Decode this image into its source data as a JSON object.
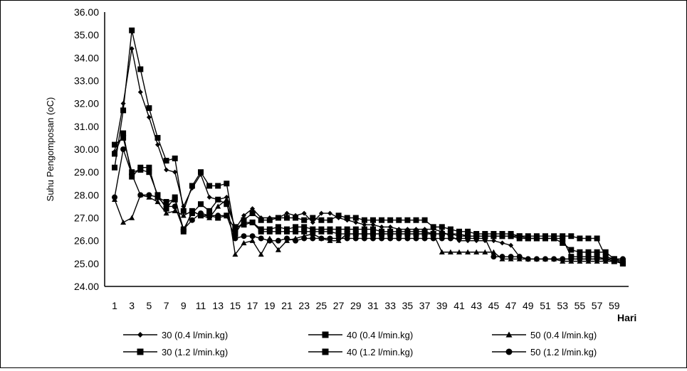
{
  "chart_data": {
    "type": "line",
    "title": "",
    "ylabel": "Suhu Pengomposan (oC)",
    "xlabel": "Hari",
    "ylim": [
      24,
      36
    ],
    "yticks": [
      "24.00",
      "25.00",
      "26.00",
      "27.00",
      "28.00",
      "29.00",
      "30.00",
      "31.00",
      "32.00",
      "33.00",
      "34.00",
      "35.00",
      "36.00"
    ],
    "xticks": [
      "1",
      "3",
      "5",
      "7",
      "9",
      "11",
      "13",
      "15",
      "17",
      "19",
      "21",
      "23",
      "25",
      "27",
      "29",
      "31",
      "33",
      "35",
      "37",
      "39",
      "41",
      "43",
      "45",
      "47",
      "49",
      "51",
      "53",
      "55",
      "57",
      "59"
    ],
    "grid": false,
    "legend_position": "bottom",
    "line_color": "#000000",
    "x": [
      1,
      2,
      3,
      4,
      5,
      6,
      7,
      8,
      9,
      10,
      11,
      12,
      13,
      14,
      15,
      16,
      17,
      18,
      19,
      20,
      21,
      22,
      23,
      24,
      25,
      26,
      27,
      28,
      29,
      30,
      31,
      32,
      33,
      34,
      35,
      36,
      37,
      38,
      39,
      40,
      41,
      42,
      43,
      44,
      45,
      46,
      47,
      48,
      49,
      50,
      51,
      52,
      53,
      54,
      55,
      56,
      57,
      58,
      59,
      60
    ],
    "series": [
      {
        "name": "30 (0.4 l/min.kg)",
        "marker": "diamond",
        "values": [
          29.9,
          32.0,
          34.4,
          32.5,
          31.4,
          30.2,
          29.1,
          29.0,
          27.5,
          28.3,
          28.9,
          27.9,
          27.8,
          27.9,
          26.5,
          27.1,
          27.4,
          27.0,
          27.0,
          27.0,
          27.2,
          27.1,
          27.2,
          26.8,
          27.2,
          27.2,
          27.0,
          26.9,
          26.8,
          26.7,
          26.7,
          26.6,
          26.6,
          26.5,
          26.5,
          26.5,
          26.5,
          26.5,
          26.4,
          26.2,
          26.0,
          26.0,
          26.0,
          26.0,
          26.0,
          25.9,
          25.8,
          25.3,
          25.2,
          25.2,
          25.2,
          25.2,
          25.2,
          25.2,
          25.2,
          25.2,
          25.2,
          25.2,
          25.2,
          25.2
        ]
      },
      {
        "name": "40 (0.4 l/min.kg)",
        "marker": "square",
        "values": [
          29.2,
          31.7,
          35.2,
          33.5,
          31.8,
          30.5,
          29.5,
          29.6,
          27.3,
          28.4,
          29.0,
          28.4,
          28.4,
          28.5,
          26.3,
          26.9,
          27.2,
          26.9,
          26.9,
          27.0,
          27.0,
          27.0,
          26.9,
          27.0,
          26.9,
          26.9,
          27.1,
          27.0,
          27.0,
          26.9,
          26.9,
          26.9,
          26.9,
          26.9,
          26.9,
          26.9,
          26.9,
          26.6,
          26.6,
          26.5,
          26.4,
          26.4,
          26.3,
          26.3,
          26.3,
          26.3,
          26.3,
          26.2,
          26.2,
          26.2,
          26.2,
          26.2,
          26.2,
          26.2,
          26.1,
          26.1,
          26.1,
          25.3,
          25.2,
          25.1
        ]
      },
      {
        "name": "50 (0.4 l/min.kg)",
        "marker": "triangle",
        "values": [
          27.8,
          26.8,
          27.0,
          28.0,
          27.9,
          27.7,
          27.2,
          27.3,
          27.1,
          27.3,
          27.1,
          27.0,
          27.5,
          27.8,
          25.4,
          25.9,
          26.0,
          25.4,
          26.1,
          25.6,
          26.0,
          26.1,
          26.2,
          26.3,
          26.1,
          26.0,
          26.0,
          26.3,
          26.3,
          26.3,
          26.3,
          26.3,
          26.3,
          26.3,
          26.3,
          26.3,
          26.3,
          26.3,
          25.5,
          25.5,
          25.5,
          25.5,
          25.5,
          25.5,
          25.5,
          25.2,
          25.2,
          25.2,
          25.2,
          25.2,
          25.2,
          25.2,
          25.1,
          25.1,
          25.1,
          25.1,
          25.1,
          25.1,
          25.1,
          25.0
        ]
      },
      {
        "name": "30 (1.2 l/min.kg)",
        "marker": "square",
        "values": [
          30.2,
          30.5,
          29.0,
          29.1,
          29.0,
          28.0,
          27.4,
          27.9,
          26.4,
          27.3,
          27.1,
          27.1,
          27.0,
          27.1,
          26.5,
          26.8,
          26.8,
          26.5,
          26.5,
          26.6,
          26.5,
          26.6,
          26.6,
          26.5,
          26.5,
          26.5,
          26.5,
          26.5,
          26.5,
          26.5,
          26.5,
          26.4,
          26.4,
          26.4,
          26.4,
          26.4,
          26.4,
          26.3,
          26.3,
          26.3,
          26.3,
          26.2,
          26.2,
          26.2,
          26.2,
          26.2,
          26.2,
          26.2,
          26.1,
          26.1,
          26.1,
          26.1,
          26.1,
          25.3,
          25.3,
          25.3,
          25.3,
          25.2,
          25.1,
          25.0
        ]
      },
      {
        "name": "40 (1.2 l/min.kg)",
        "marker": "square",
        "values": [
          29.8,
          30.7,
          28.8,
          29.2,
          29.2,
          27.9,
          27.7,
          27.8,
          26.5,
          27.2,
          27.6,
          27.3,
          27.8,
          27.6,
          26.6,
          26.7,
          26.8,
          26.4,
          26.4,
          26.4,
          26.4,
          26.4,
          26.4,
          26.4,
          26.4,
          26.4,
          26.3,
          26.3,
          26.3,
          26.3,
          26.3,
          26.3,
          26.3,
          26.3,
          26.3,
          26.3,
          26.3,
          26.3,
          26.3,
          26.3,
          26.2,
          26.2,
          26.2,
          26.2,
          26.2,
          26.2,
          26.2,
          26.1,
          26.1,
          26.1,
          26.1,
          26.1,
          25.9,
          25.6,
          25.5,
          25.5,
          25.5,
          25.5,
          25.2,
          25.0
        ]
      },
      {
        "name": "50 (1.2 l/min.kg)",
        "marker": "circle",
        "values": [
          27.9,
          30.0,
          28.9,
          28.0,
          28.0,
          27.9,
          27.5,
          27.5,
          26.5,
          26.9,
          27.2,
          27.1,
          27.1,
          27.1,
          26.1,
          26.2,
          26.2,
          26.1,
          26.0,
          26.0,
          26.1,
          26.0,
          26.1,
          26.1,
          26.1,
          26.1,
          26.1,
          26.1,
          26.1,
          26.1,
          26.1,
          26.1,
          26.1,
          26.1,
          26.1,
          26.1,
          26.1,
          26.1,
          26.1,
          26.1,
          26.1,
          26.1,
          26.1,
          26.1,
          25.3,
          25.3,
          25.3,
          25.3,
          25.2,
          25.2,
          25.2,
          25.2,
          25.2,
          25.2,
          25.2,
          25.2,
          25.2,
          25.2,
          25.2,
          25.2
        ]
      }
    ]
  }
}
